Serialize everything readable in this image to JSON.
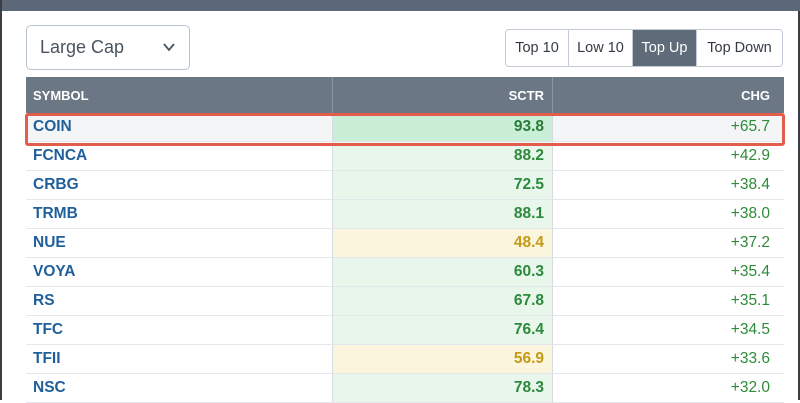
{
  "filter": {
    "selected": "Large Cap"
  },
  "tabs": [
    {
      "label": "Top 10",
      "active": false
    },
    {
      "label": "Low 10",
      "active": false
    },
    {
      "label": "Top Up",
      "active": true
    },
    {
      "label": "Top Down",
      "active": false
    }
  ],
  "table": {
    "headers": {
      "symbol": "SYMBOL",
      "sctr": "SCTR",
      "chg": "CHG"
    },
    "rows": [
      {
        "symbol": "COIN",
        "sctr": "93.8",
        "chg": "+65.7",
        "tone": "green-strong"
      },
      {
        "symbol": "FCNCA",
        "sctr": "88.2",
        "chg": "+42.9",
        "tone": "green"
      },
      {
        "symbol": "CRBG",
        "sctr": "72.5",
        "chg": "+38.4",
        "tone": "green"
      },
      {
        "symbol": "TRMB",
        "sctr": "88.1",
        "chg": "+38.0",
        "tone": "green"
      },
      {
        "symbol": "NUE",
        "sctr": "48.4",
        "chg": "+37.2",
        "tone": "yellow"
      },
      {
        "symbol": "VOYA",
        "sctr": "60.3",
        "chg": "+35.4",
        "tone": "green"
      },
      {
        "symbol": "RS",
        "sctr": "67.8",
        "chg": "+35.1",
        "tone": "green"
      },
      {
        "symbol": "TFC",
        "sctr": "76.4",
        "chg": "+34.5",
        "tone": "green"
      },
      {
        "symbol": "TFII",
        "sctr": "56.9",
        "chg": "+33.6",
        "tone": "yellow"
      },
      {
        "symbol": "NSC",
        "sctr": "78.3",
        "chg": "+32.0",
        "tone": "green"
      }
    ]
  },
  "colors": {
    "header_bg": "#6b7785",
    "active_tab_bg": "#5f6b79",
    "highlight_border": "#e25d4b",
    "positive_change": "#2e8b3a",
    "symbol_link": "#1f5f9a"
  },
  "icons": {
    "dropdown": "chevron-down-icon"
  }
}
